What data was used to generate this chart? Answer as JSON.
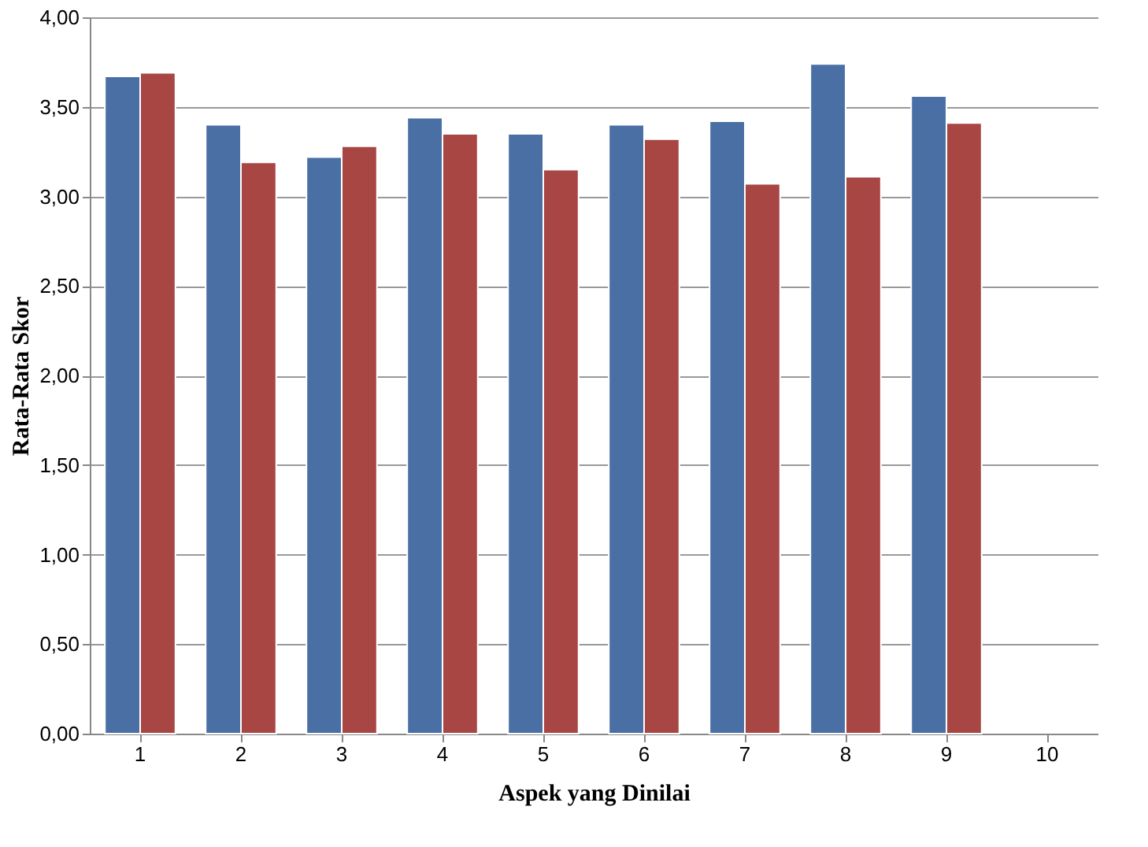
{
  "chart_data": {
    "type": "bar",
    "xlabel": "Aspek yang Dinilai",
    "ylabel": "Rata-Rata Skor",
    "categories": [
      "1",
      "2",
      "3",
      "4",
      "5",
      "6",
      "7",
      "8",
      "9",
      "10"
    ],
    "series": [
      {
        "color": "#4a6fa5",
        "values": [
          3.67,
          3.4,
          3.22,
          3.44,
          3.35,
          3.4,
          3.42,
          3.74,
          3.56,
          null
        ]
      },
      {
        "color": "#a84644",
        "values": [
          3.69,
          3.19,
          3.28,
          3.35,
          3.15,
          3.32,
          3.07,
          3.11,
          3.41,
          null
        ]
      }
    ],
    "ylim": [
      0,
      4
    ],
    "yticks": [
      {
        "value": 0,
        "label": "0,00"
      },
      {
        "value": 0.5,
        "label": "0,50"
      },
      {
        "value": 1,
        "label": "1,00"
      },
      {
        "value": 1.5,
        "label": "1,50"
      },
      {
        "value": 2,
        "label": "2,00"
      },
      {
        "value": 2.5,
        "label": "2,50"
      },
      {
        "value": 3,
        "label": "3,00"
      },
      {
        "value": 3.5,
        "label": "3,50"
      },
      {
        "value": 4,
        "label": "4,00"
      }
    ],
    "grid": "y"
  }
}
